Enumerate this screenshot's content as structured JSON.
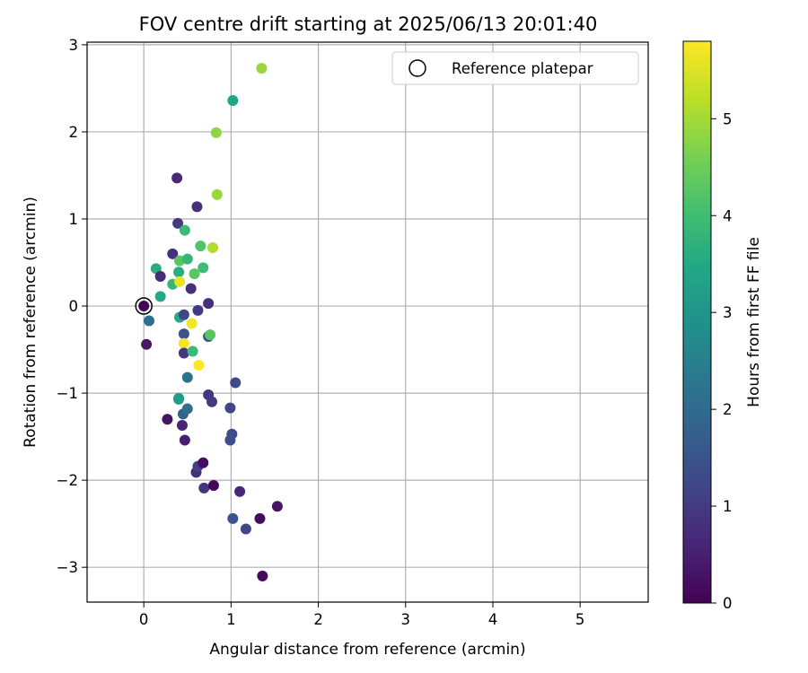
{
  "chart_data": {
    "type": "scatter",
    "title": "FOV centre drift starting at 2025/06/13 20:01:40",
    "xlabel": "Angular distance from reference (arcmin)",
    "ylabel": "Rotation from reference (arcmin)",
    "xlim": [
      -0.65,
      5.78
    ],
    "ylim": [
      -3.4,
      3.03
    ],
    "xticks": [
      0,
      1,
      2,
      3,
      4,
      5
    ],
    "xtick_labels": [
      "0",
      "1",
      "2",
      "3",
      "4",
      "5"
    ],
    "yticks": [
      -3,
      -2,
      -1,
      0,
      1,
      2,
      3
    ],
    "ytick_labels": [
      "−3",
      "−2",
      "−1",
      "0",
      "1",
      "2",
      "3"
    ],
    "grid": true,
    "legend": {
      "placement": "upper-right",
      "entries": [
        "Reference platepar"
      ]
    },
    "colorbar": {
      "label": "Hours from first FF file",
      "colormap": "viridis",
      "range": [
        0,
        5.8
      ],
      "ticks": [
        0,
        1,
        2,
        3,
        4,
        5
      ],
      "tick_labels": [
        "0",
        "1",
        "2",
        "3",
        "4",
        "5"
      ]
    },
    "reference_point": {
      "x": 0,
      "y": 0
    },
    "points": [
      {
        "x": 0.0,
        "y": 0.0,
        "c": 0.05
      },
      {
        "x": 0.06,
        "y": -0.17,
        "c": 2.1
      },
      {
        "x": 0.03,
        "y": -0.44,
        "c": 0.4
      },
      {
        "x": 0.14,
        "y": 0.43,
        "c": 3.6
      },
      {
        "x": 0.19,
        "y": 0.34,
        "c": 0.75
      },
      {
        "x": 0.19,
        "y": 0.11,
        "c": 3.5
      },
      {
        "x": 0.33,
        "y": 0.6,
        "c": 0.8
      },
      {
        "x": 0.33,
        "y": 0.25,
        "c": 3.8
      },
      {
        "x": 0.38,
        "y": 1.47,
        "c": 0.7
      },
      {
        "x": 0.39,
        "y": 0.95,
        "c": 1.0
      },
      {
        "x": 0.41,
        "y": 0.52,
        "c": 4.3
      },
      {
        "x": 0.4,
        "y": 0.39,
        "c": 3.6
      },
      {
        "x": 0.41,
        "y": 0.28,
        "c": 5.6
      },
      {
        "x": 0.41,
        "y": -0.13,
        "c": 3.5
      },
      {
        "x": 0.46,
        "y": -0.1,
        "c": 1.2
      },
      {
        "x": 0.47,
        "y": 0.87,
        "c": 3.9
      },
      {
        "x": 0.46,
        "y": -0.32,
        "c": 1.5
      },
      {
        "x": 0.46,
        "y": -0.43,
        "c": 5.7
      },
      {
        "x": 0.46,
        "y": -0.54,
        "c": 0.9
      },
      {
        "x": 0.5,
        "y": 0.54,
        "c": 3.8
      },
      {
        "x": 0.5,
        "y": -0.82,
        "c": 2.2
      },
      {
        "x": 0.54,
        "y": 0.2,
        "c": 0.8
      },
      {
        "x": 0.55,
        "y": -0.2,
        "c": 5.7
      },
      {
        "x": 0.56,
        "y": -0.52,
        "c": 3.9
      },
      {
        "x": 0.58,
        "y": 0.37,
        "c": 4.3
      },
      {
        "x": 0.61,
        "y": 1.14,
        "c": 0.8
      },
      {
        "x": 0.62,
        "y": -0.05,
        "c": 1.0
      },
      {
        "x": 0.63,
        "y": -0.68,
        "c": 5.8
      },
      {
        "x": 0.65,
        "y": 0.69,
        "c": 4.2
      },
      {
        "x": 0.68,
        "y": 0.44,
        "c": 4.0
      },
      {
        "x": 0.74,
        "y": 0.03,
        "c": 0.8
      },
      {
        "x": 0.74,
        "y": -0.35,
        "c": 1.4
      },
      {
        "x": 0.76,
        "y": -0.33,
        "c": 4.3
      },
      {
        "x": 0.79,
        "y": 0.67,
        "c": 5.1
      },
      {
        "x": 0.4,
        "y": -1.07,
        "c": 3.0
      },
      {
        "x": 0.4,
        "y": -1.06,
        "c": 3.2
      },
      {
        "x": 0.45,
        "y": -1.24,
        "c": 1.8
      },
      {
        "x": 0.5,
        "y": -1.18,
        "c": 2.1
      },
      {
        "x": 0.44,
        "y": -1.37,
        "c": 0.6
      },
      {
        "x": 0.27,
        "y": -1.3,
        "c": 0.3
      },
      {
        "x": 0.47,
        "y": -1.54,
        "c": 0.5
      },
      {
        "x": 0.6,
        "y": -1.91,
        "c": 0.8
      },
      {
        "x": 0.62,
        "y": -1.84,
        "c": 1.1
      },
      {
        "x": 0.68,
        "y": -1.8,
        "c": 0.2
      },
      {
        "x": 0.69,
        "y": -2.09,
        "c": 0.9
      },
      {
        "x": 0.8,
        "y": -2.06,
        "c": 0.1
      },
      {
        "x": 0.74,
        "y": -1.02,
        "c": 0.9
      },
      {
        "x": 0.78,
        "y": -1.1,
        "c": 1.0
      },
      {
        "x": 0.83,
        "y": 1.99,
        "c": 4.8
      },
      {
        "x": 0.84,
        "y": 1.28,
        "c": 4.9
      },
      {
        "x": 1.02,
        "y": 2.36,
        "c": 3.4
      },
      {
        "x": 1.35,
        "y": 2.73,
        "c": 4.9
      },
      {
        "x": 0.99,
        "y": -1.17,
        "c": 1.2
      },
      {
        "x": 1.01,
        "y": -1.47,
        "c": 1.3
      },
      {
        "x": 0.99,
        "y": -1.54,
        "c": 1.4
      },
      {
        "x": 1.05,
        "y": -0.88,
        "c": 1.3
      },
      {
        "x": 1.02,
        "y": -2.44,
        "c": 1.5
      },
      {
        "x": 1.1,
        "y": -2.13,
        "c": 0.6
      },
      {
        "x": 1.17,
        "y": -2.56,
        "c": 1.2
      },
      {
        "x": 1.33,
        "y": -2.44,
        "c": 0.2
      },
      {
        "x": 1.36,
        "y": -3.1,
        "c": 0.15
      },
      {
        "x": 1.53,
        "y": -2.3,
        "c": 0.3
      }
    ]
  }
}
